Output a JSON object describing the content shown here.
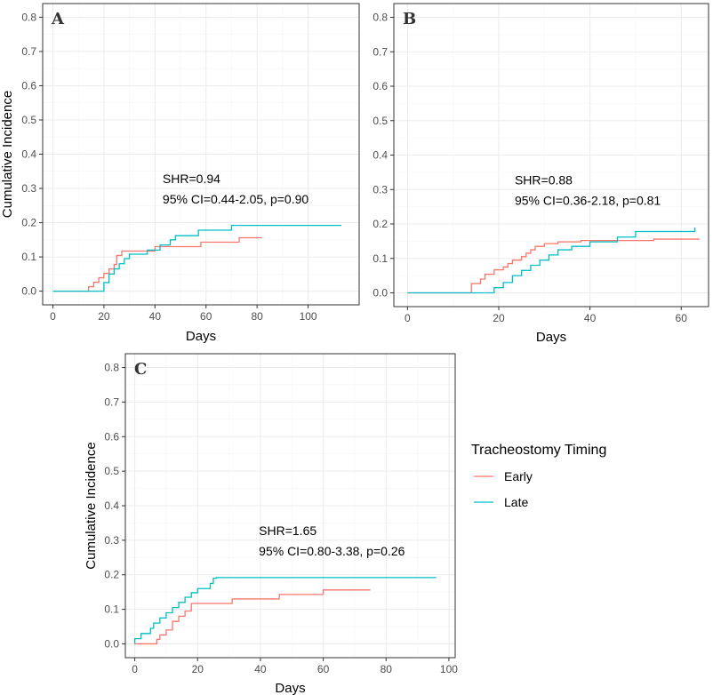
{
  "legend": {
    "title": "Tracheostomy Timing",
    "entries": [
      {
        "name": "Early",
        "color": "#F8766D"
      },
      {
        "name": "Late",
        "color": "#00BFC4"
      }
    ]
  },
  "chart_data": [
    {
      "panel": "A",
      "type": "line",
      "step": true,
      "xlabel": "Days",
      "ylabel": "Cumulative Incidence",
      "xlim": [
        -4,
        120
      ],
      "ylim": [
        -0.04,
        0.84
      ],
      "xticks": [
        0,
        20,
        40,
        60,
        80,
        100
      ],
      "yticks": [
        0.0,
        0.1,
        0.2,
        0.3,
        0.4,
        0.5,
        0.6,
        0.7,
        0.8
      ],
      "ytick_labels": [
        "0.0",
        "0.1",
        "0.2",
        "0.3",
        "0.4",
        "0.5",
        "0.6",
        "0.7",
        "0.8"
      ],
      "annotation": {
        "line1": "SHR=0.94",
        "line2": "95% CI=0.44-2.05, p=0.90",
        "x": 43,
        "y": 0.315
      },
      "series": [
        {
          "name": "Early",
          "color": "#F8766D",
          "x": [
            0,
            14,
            14,
            16,
            16,
            18,
            18,
            20,
            20,
            22,
            22,
            24,
            24,
            25,
            25,
            27,
            27,
            34,
            34,
            40,
            40,
            46,
            46,
            58,
            58,
            66,
            66,
            73,
            73,
            82
          ],
          "y": [
            0,
            0,
            0.013,
            0.013,
            0.026,
            0.026,
            0.039,
            0.039,
            0.052,
            0.052,
            0.065,
            0.065,
            0.078,
            0.078,
            0.104,
            0.104,
            0.117,
            0.117,
            0.117,
            0.117,
            0.13,
            0.13,
            0.13,
            0.13,
            0.143,
            0.143,
            0.143,
            0.143,
            0.156,
            0.156
          ]
        },
        {
          "name": "Late",
          "color": "#00BFC4",
          "x": [
            0,
            20,
            20,
            22,
            22,
            24,
            24,
            26,
            26,
            28,
            28,
            30,
            30,
            37,
            37,
            42,
            42,
            46,
            46,
            48,
            48,
            57,
            57,
            70,
            70,
            113
          ],
          "y": [
            0,
            0,
            0.025,
            0.025,
            0.05,
            0.05,
            0.065,
            0.065,
            0.08,
            0.08,
            0.095,
            0.095,
            0.108,
            0.108,
            0.12,
            0.12,
            0.135,
            0.135,
            0.15,
            0.15,
            0.162,
            0.162,
            0.178,
            0.178,
            0.192,
            0.192
          ]
        }
      ]
    },
    {
      "panel": "B",
      "type": "line",
      "step": true,
      "xlabel": "Days",
      "ylabel": "",
      "xlim": [
        -3,
        66
      ],
      "ylim": [
        -0.04,
        0.84
      ],
      "xticks": [
        0,
        20,
        40,
        60
      ],
      "yticks": [
        0.0,
        0.1,
        0.2,
        0.3,
        0.4,
        0.5,
        0.6,
        0.7,
        0.8
      ],
      "ytick_labels": [
        "0.0",
        "0.1",
        "0.2",
        "0.3",
        "0.4",
        "0.5",
        "0.6",
        "0.7",
        "0.8"
      ],
      "annotation": {
        "line1": "SHR=0.88",
        "line2": "95% CI=0.36-2.18, p=0.81",
        "x": 23.5,
        "y": 0.315
      },
      "series": [
        {
          "name": "Early",
          "color": "#F8766D",
          "x": [
            0,
            14,
            14,
            16,
            16,
            17,
            17,
            19,
            19,
            21,
            21,
            22,
            22,
            23,
            23,
            25,
            25,
            26,
            26,
            27,
            27,
            28,
            28,
            30,
            30,
            33,
            33,
            38,
            38,
            46,
            46,
            54,
            54,
            64
          ],
          "y": [
            0,
            0,
            0.027,
            0.027,
            0.04,
            0.04,
            0.054,
            0.054,
            0.067,
            0.067,
            0.075,
            0.075,
            0.085,
            0.085,
            0.095,
            0.095,
            0.105,
            0.105,
            0.115,
            0.115,
            0.125,
            0.125,
            0.135,
            0.135,
            0.143,
            0.143,
            0.148,
            0.148,
            0.152,
            0.152,
            0.152,
            0.152,
            0.156,
            0.156
          ]
        },
        {
          "name": "Late",
          "color": "#00BFC4",
          "x": [
            0,
            19,
            19,
            21,
            21,
            23,
            23,
            25,
            25,
            27,
            27,
            29,
            29,
            31,
            31,
            33,
            33,
            36,
            36,
            40,
            40,
            46,
            46,
            50,
            50,
            63,
            63
          ],
          "y": [
            0,
            0,
            0.015,
            0.015,
            0.03,
            0.03,
            0.05,
            0.05,
            0.065,
            0.065,
            0.08,
            0.08,
            0.095,
            0.095,
            0.11,
            0.11,
            0.125,
            0.125,
            0.135,
            0.135,
            0.148,
            0.148,
            0.162,
            0.162,
            0.178,
            0.178,
            0.19
          ]
        }
      ]
    },
    {
      "panel": "C",
      "type": "line",
      "step": true,
      "xlabel": "Days",
      "ylabel": "Cumulative Incidence",
      "xlim": [
        -3,
        102
      ],
      "ylim": [
        -0.04,
        0.84
      ],
      "xticks": [
        0,
        20,
        40,
        60,
        80,
        100
      ],
      "yticks": [
        0.0,
        0.1,
        0.2,
        0.3,
        0.4,
        0.5,
        0.6,
        0.7,
        0.8
      ],
      "ytick_labels": [
        "0.0",
        "0.1",
        "0.2",
        "0.3",
        "0.4",
        "0.5",
        "0.6",
        "0.7",
        "0.8"
      ],
      "annotation": {
        "line1": "SHR=1.65",
        "line2": "95% CI=0.80-3.38, p=0.26",
        "x": 39.5,
        "y": 0.315
      },
      "series": [
        {
          "name": "Early",
          "color": "#F8766D",
          "x": [
            0,
            7,
            7,
            8,
            8,
            10,
            10,
            12,
            12,
            14,
            14,
            16,
            16,
            18,
            18,
            22,
            22,
            31,
            31,
            46,
            46,
            60,
            60,
            75
          ],
          "y": [
            0,
            0,
            0.013,
            0.013,
            0.026,
            0.026,
            0.04,
            0.04,
            0.065,
            0.065,
            0.08,
            0.08,
            0.095,
            0.095,
            0.117,
            0.117,
            0.117,
            0.117,
            0.13,
            0.13,
            0.143,
            0.143,
            0.156,
            0.156
          ]
        },
        {
          "name": "Late",
          "color": "#00BFC4",
          "x": [
            0,
            0,
            2,
            2,
            5,
            5,
            6,
            6,
            8,
            8,
            10,
            10,
            12,
            12,
            14,
            14,
            16,
            16,
            18,
            18,
            20,
            20,
            24,
            24,
            25,
            25,
            26,
            26,
            96
          ],
          "y": [
            0,
            0.015,
            0.015,
            0.03,
            0.03,
            0.045,
            0.045,
            0.06,
            0.06,
            0.075,
            0.075,
            0.09,
            0.09,
            0.105,
            0.105,
            0.12,
            0.12,
            0.135,
            0.135,
            0.148,
            0.148,
            0.16,
            0.16,
            0.175,
            0.175,
            0.19,
            0.19,
            0.192,
            0.192
          ]
        }
      ]
    }
  ]
}
